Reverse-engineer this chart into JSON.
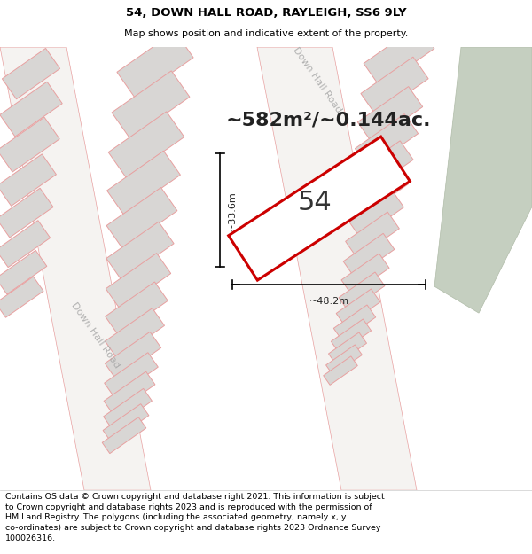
{
  "title": "54, DOWN HALL ROAD, RAYLEIGH, SS6 9LY",
  "subtitle": "Map shows position and indicative extent of the property.",
  "area_label": "~582m²/~0.144ac.",
  "label_54": "54",
  "width_label": "~48.2m",
  "height_label": "~33.6m",
  "road_label_left": "Down Hall Road",
  "road_label_right": "Down Hall Road",
  "disclaimer": "Contains OS data © Crown copyright and database right 2021. This information is subject to Crown copyright and database rights 2023 and is reproduced with the permission of\nHM Land Registry. The polygons (including the associated geometry, namely x, y\nco-ordinates) are subject to Crown copyright and database rights 2023 Ordnance Survey\n100026316.",
  "map_bg": "#edecea",
  "building_fill": "#d8d6d4",
  "building_edge": "#e8a0a0",
  "road_fill": "#f5f3f1",
  "road_edge": "#e8a0a0",
  "property_fill": "#ffffff",
  "property_edge": "#cc0000",
  "green_fill": "#c5cfc0",
  "green_edge": "#b0bca8",
  "title_fontsize": 9.5,
  "subtitle_fontsize": 8,
  "area_fontsize": 16,
  "label54_fontsize": 22,
  "dim_fontsize": 8,
  "road_fontsize": 8,
  "disclaimer_fontsize": 6.8
}
